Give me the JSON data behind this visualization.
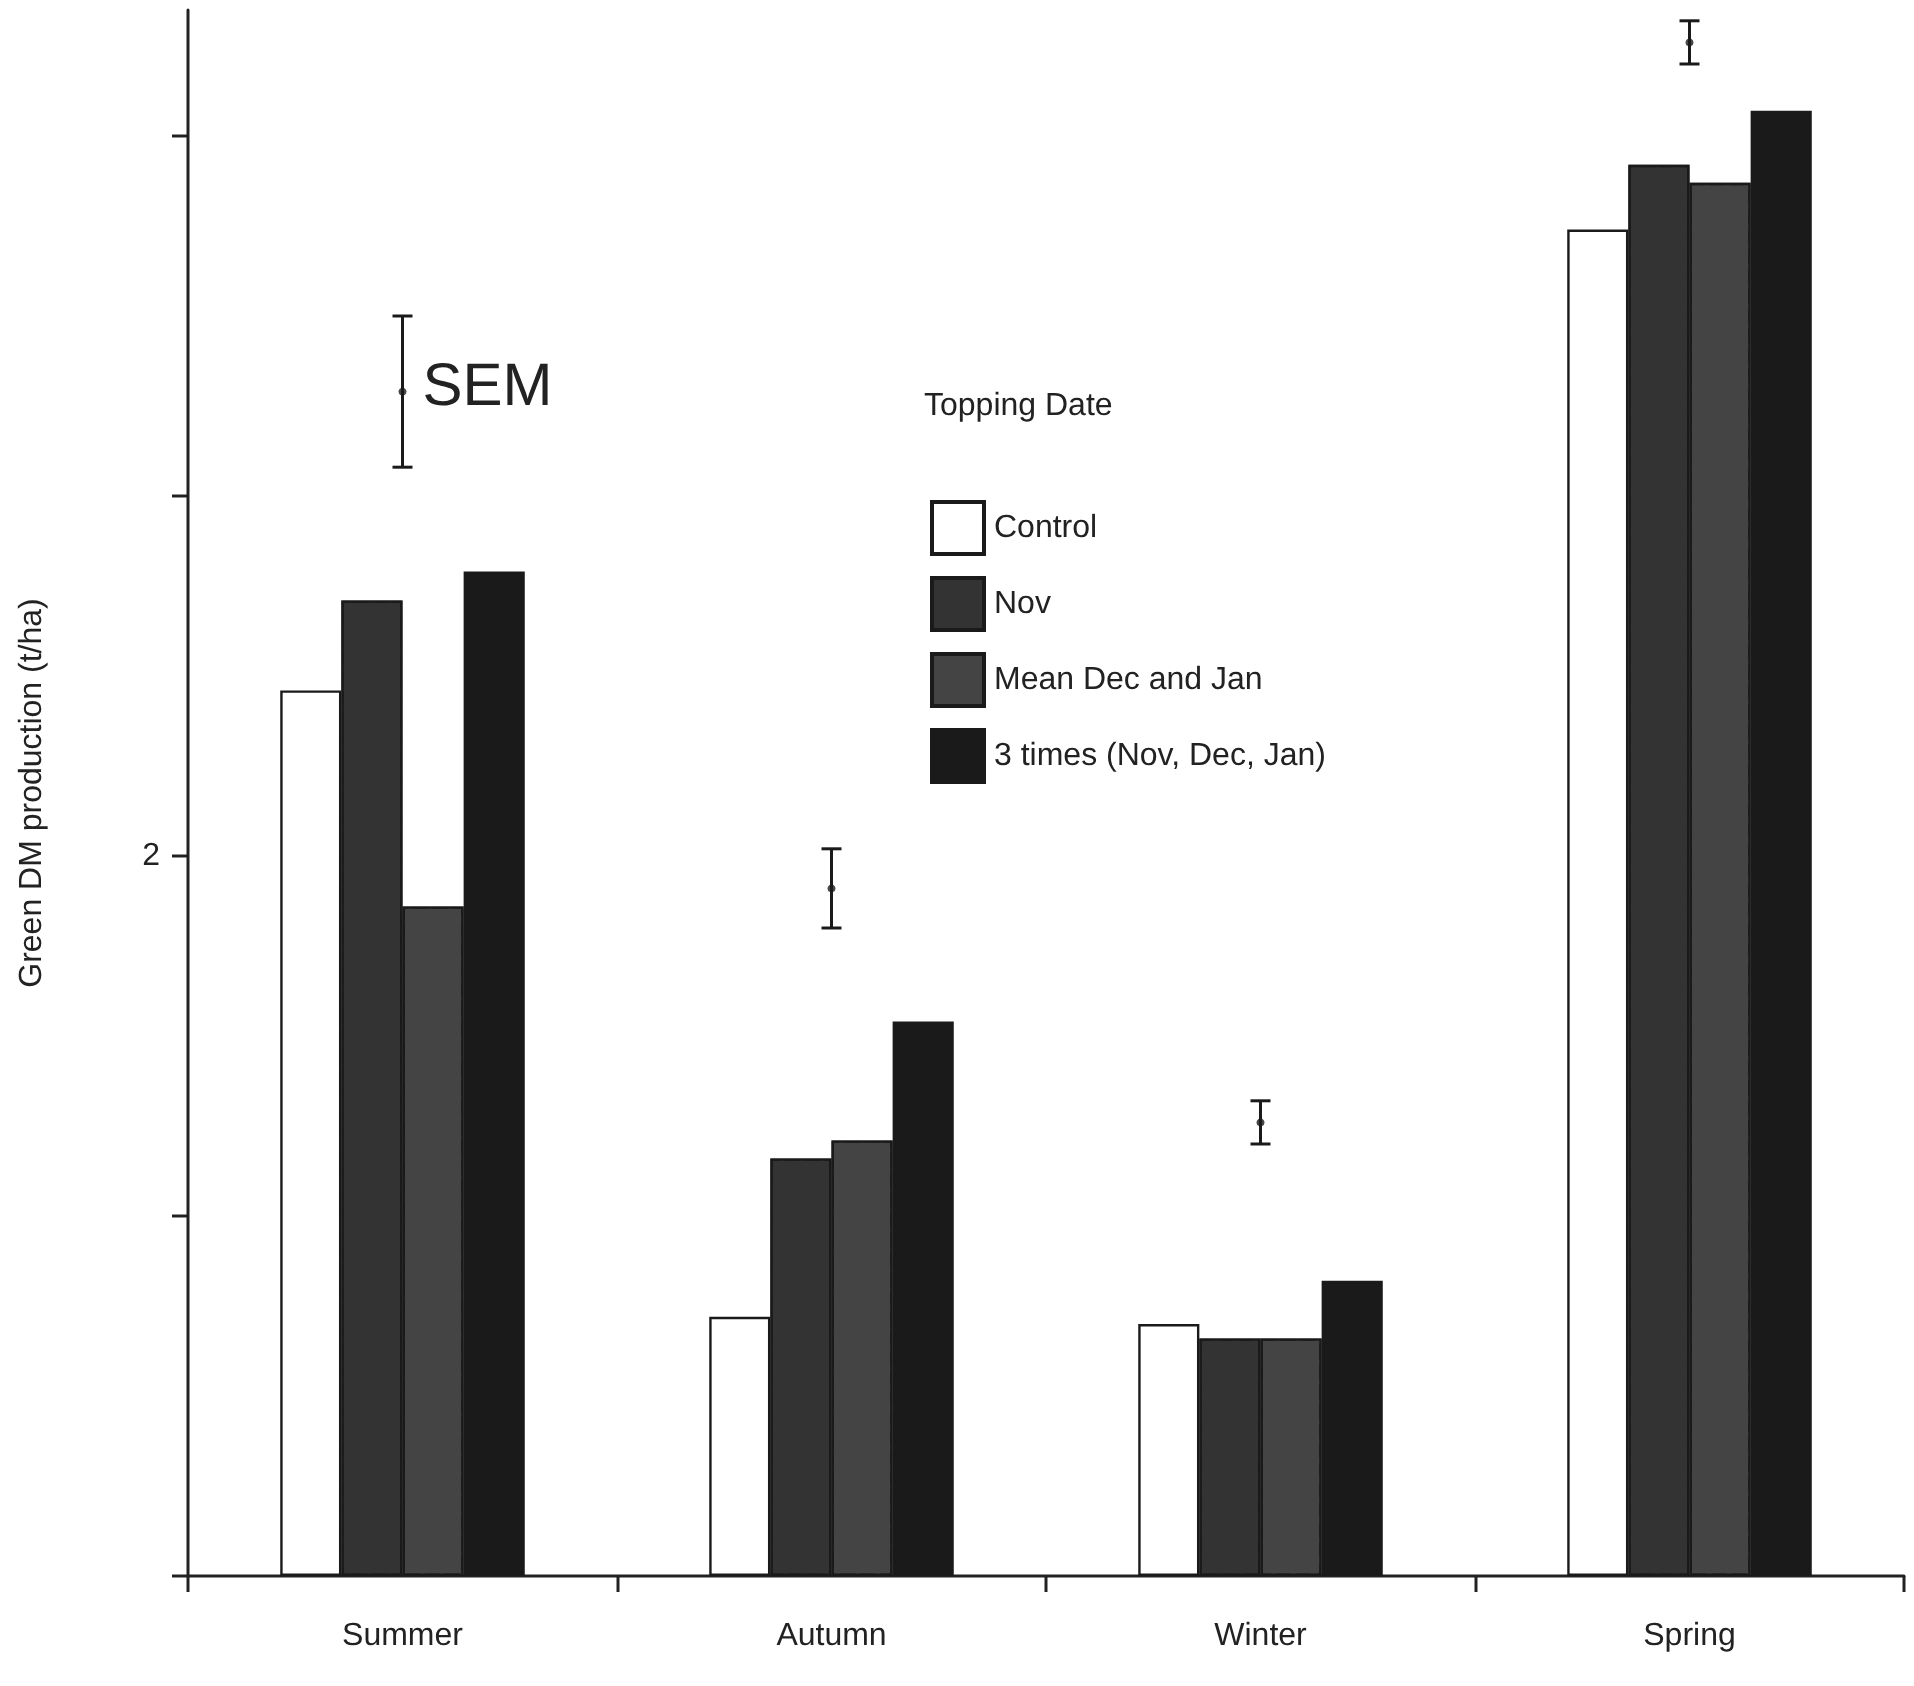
{
  "chart_data": {
    "type": "bar",
    "ylabel": "Green DM production (t/ha)",
    "legend_title": "Topping Date",
    "categories": [
      "Summer",
      "Autumn",
      "Winter",
      "Spring"
    ],
    "series": [
      {
        "name": "Control",
        "color": "#ffffff",
        "values": [
          2.46,
          0.72,
          0.7,
          3.74
        ]
      },
      {
        "name": "Nov",
        "color": "#333333",
        "values": [
          2.71,
          1.16,
          0.66,
          3.92
        ]
      },
      {
        "name": "Mean Dec and Jan",
        "color": "#444444",
        "values": [
          1.86,
          1.21,
          0.66,
          3.87
        ]
      },
      {
        "name": "3 times (Nov, Dec, Jan)",
        "color": "#1a1a1a",
        "values": [
          2.79,
          1.54,
          0.82,
          4.07
        ]
      },
      {
        "type": "scatter",
        "x": [
          "Summer",
          "Autumn",
          "Winter",
          "Spring"
        ],
        "values": [
          3.29,
          1.91,
          1.26,
          4.26
        ],
        "errors": [
          0.21,
          0.11,
          0.06,
          0.06
        ],
        "color": "#1a1a1a",
        "marker": "circle"
      }
    ],
    "ylim": [
      0,
      4.35
    ],
    "yticks": [
      {
        "value": 0,
        "label": null
      },
      {
        "value": 1,
        "label": null
      },
      {
        "value": 2,
        "label": "2"
      },
      {
        "value": 3,
        "label": null
      },
      {
        "value": 4,
        "label": null
      }
    ],
    "annotations": [
      {
        "text": "SEM",
        "x": "Summer",
        "y": 3.29
      }
    ],
    "grid": false,
    "legend": "top"
  }
}
